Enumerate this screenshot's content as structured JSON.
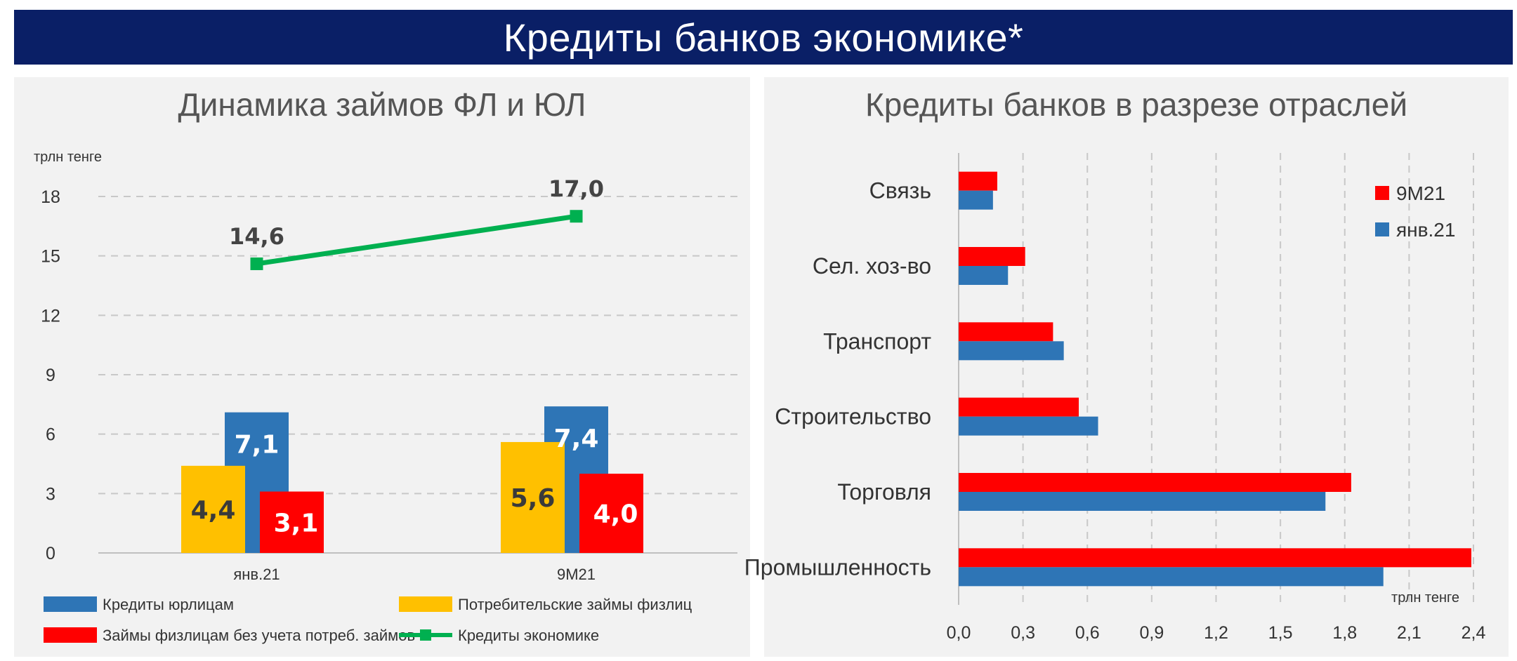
{
  "header": {
    "title": "Кредиты банков экономике*"
  },
  "colors": {
    "banner": "#0a1f66",
    "blue": "#2e75b6",
    "yellow": "#ffc000",
    "red": "#ff0000",
    "green": "#00b050"
  },
  "chart_data": [
    {
      "type": "bar",
      "title": "Динамика займов ФЛ и ЮЛ",
      "unit_label": "трлн тенге",
      "categories": [
        "янв.21",
        "9М21"
      ],
      "ylim": [
        0,
        18
      ],
      "yticks": [
        "0",
        "3",
        "6",
        "9",
        "12",
        "15",
        "18"
      ],
      "grid": true,
      "series": [
        {
          "name": "Потребительские займы физлиц",
          "color": "#ffc000",
          "values": [
            4.4,
            5.6
          ],
          "labels": [
            "4,4",
            "5,6"
          ]
        },
        {
          "name": "Кредиты юрлицам",
          "color": "#2e75b6",
          "values": [
            7.1,
            7.4
          ],
          "labels": [
            "7,1",
            "7,4"
          ]
        },
        {
          "name": "Займы физлицам без учета потреб. займов",
          "color": "#ff0000",
          "values": [
            3.1,
            4.0
          ],
          "labels": [
            "3,1",
            "4,0"
          ]
        }
      ],
      "line_series": {
        "name": "Кредиты экономике",
        "color": "#00b050",
        "values": [
          14.6,
          17.0
        ],
        "labels": [
          "14,6",
          "17,0"
        ]
      },
      "legend": [
        {
          "name": "Кредиты юрлицам",
          "color": "#2e75b6",
          "kind": "box"
        },
        {
          "name": "Потребительские займы физлиц",
          "color": "#ffc000",
          "kind": "box"
        },
        {
          "name": "Займы физлицам без учета потреб. займов",
          "color": "#ff0000",
          "kind": "box"
        },
        {
          "name": "Кредиты экономике",
          "color": "#00b050",
          "kind": "line"
        }
      ],
      "legend_position": "bottom"
    },
    {
      "type": "bar",
      "orientation": "horizontal",
      "title": "Кредиты банков в разрезе отраслей",
      "unit_label": "трлн тенге",
      "categories": [
        "Связь",
        "Сел. хоз-во",
        "Транспорт",
        "Строительство",
        "Торговля",
        "Промышленность"
      ],
      "xlim": [
        0,
        2.4
      ],
      "xticks": [
        "0,0",
        "0,3",
        "0,6",
        "0,9",
        "1,2",
        "1,5",
        "1,8",
        "2,1",
        "2,4"
      ],
      "grid": true,
      "series": [
        {
          "name": "9М21",
          "color": "#ff0000",
          "values": [
            0.18,
            0.31,
            0.44,
            0.56,
            1.83,
            2.39
          ]
        },
        {
          "name": "янв.21",
          "color": "#2e75b6",
          "values": [
            0.16,
            0.23,
            0.49,
            0.65,
            1.71,
            1.98
          ]
        }
      ],
      "legend_position": "top-right"
    }
  ]
}
